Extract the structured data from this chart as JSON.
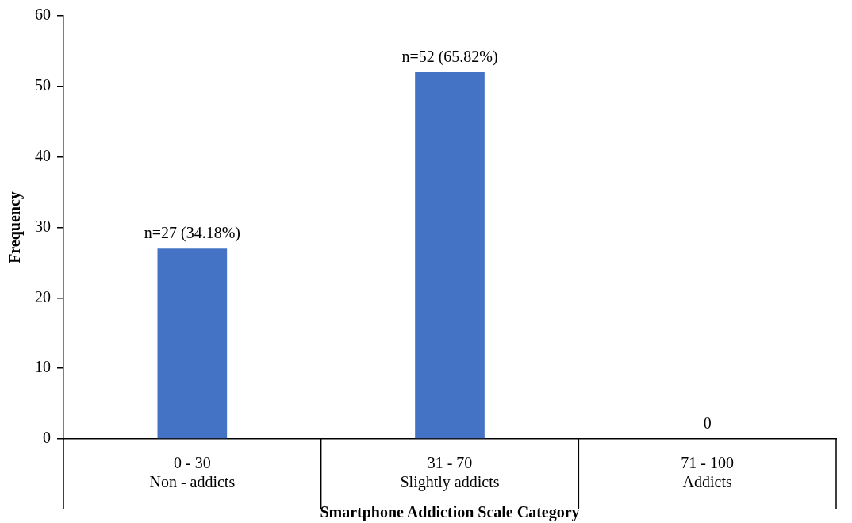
{
  "chart_data": {
    "type": "bar",
    "xlabel": "Smartphone Addiction Scale Category",
    "ylabel": "Frequency",
    "categories": [
      "0 - 30\nNon - addicts",
      "31 - 70\nSlightly addicts",
      "71 - 100\nAddicts"
    ],
    "values": [
      27,
      52,
      0
    ],
    "color": "#4472c4",
    "value_labels": [
      "n=27 (34.18%)",
      "n=52 (65.82%)",
      "0"
    ],
    "ylim": [
      0,
      60
    ],
    "yticks": [
      0,
      10,
      20,
      30,
      40,
      50,
      60
    ],
    "grid": false,
    "legend": false
  }
}
